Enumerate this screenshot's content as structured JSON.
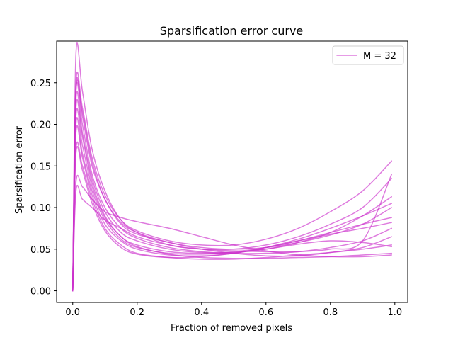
{
  "chart_data": {
    "type": "line",
    "title": "Sparsification error curve",
    "xlabel": "Fraction of removed pixels",
    "ylabel": "Sparsification error",
    "xlim": [
      -0.05,
      1.04
    ],
    "ylim": [
      -0.014,
      0.3
    ],
    "xticks": [
      0.0,
      0.2,
      0.4,
      0.6,
      0.8,
      1.0
    ],
    "xtick_labels": [
      "0.0",
      "0.2",
      "0.4",
      "0.6",
      "0.8",
      "1.0"
    ],
    "yticks": [
      0.0,
      0.05,
      0.1,
      0.15,
      0.2,
      0.25
    ],
    "ytick_labels": [
      "0.00",
      "0.05",
      "0.10",
      "0.15",
      "0.20",
      "0.25"
    ],
    "grid": false,
    "legend": {
      "position": "top-right",
      "entries": [
        "M = 32"
      ]
    },
    "line_color": "#cc33cc",
    "line_alpha": 0.65,
    "series": [
      {
        "name": "M = 32",
        "x": [
          0,
          0.01,
          0.03,
          0.06,
          0.1,
          0.15,
          0.2,
          0.3,
          0.4,
          0.5,
          0.6,
          0.7,
          0.8,
          0.9,
          0.99
        ],
        "values": [
          0,
          0.285,
          0.24,
          0.17,
          0.12,
          0.085,
          0.07,
          0.055,
          0.05,
          0.048,
          0.047,
          0.047,
          0.05,
          0.06,
          0.14
        ]
      },
      {
        "x": [
          0,
          0.01,
          0.03,
          0.06,
          0.1,
          0.15,
          0.2,
          0.3,
          0.4,
          0.5,
          0.6,
          0.7,
          0.8,
          0.9,
          0.99
        ],
        "values": [
          0,
          0.25,
          0.22,
          0.16,
          0.115,
          0.085,
          0.072,
          0.06,
          0.055,
          0.055,
          0.062,
          0.075,
          0.095,
          0.12,
          0.156
        ]
      },
      {
        "x": [
          0,
          0.01,
          0.03,
          0.06,
          0.1,
          0.15,
          0.2,
          0.3,
          0.4,
          0.5,
          0.6,
          0.7,
          0.8,
          0.9,
          0.99
        ],
        "values": [
          0,
          0.245,
          0.21,
          0.15,
          0.11,
          0.08,
          0.068,
          0.058,
          0.05,
          0.045,
          0.042,
          0.042,
          0.046,
          0.052,
          0.065
        ]
      },
      {
        "x": [
          0,
          0.01,
          0.03,
          0.06,
          0.1,
          0.15,
          0.2,
          0.3,
          0.4,
          0.5,
          0.6,
          0.7,
          0.8,
          0.9,
          0.99
        ],
        "values": [
          0,
          0.24,
          0.2,
          0.14,
          0.1,
          0.075,
          0.063,
          0.052,
          0.047,
          0.045,
          0.045,
          0.047,
          0.052,
          0.06,
          0.075
        ]
      },
      {
        "x": [
          0,
          0.01,
          0.03,
          0.06,
          0.1,
          0.15,
          0.2,
          0.3,
          0.4,
          0.5,
          0.6,
          0.7,
          0.8,
          0.9,
          0.99
        ],
        "values": [
          0,
          0.23,
          0.19,
          0.135,
          0.095,
          0.07,
          0.06,
          0.05,
          0.046,
          0.046,
          0.05,
          0.058,
          0.07,
          0.09,
          0.113
        ]
      },
      {
        "x": [
          0,
          0.01,
          0.03,
          0.06,
          0.1,
          0.15,
          0.2,
          0.3,
          0.4,
          0.5,
          0.6,
          0.7,
          0.8,
          0.9,
          0.99
        ],
        "values": [
          0,
          0.22,
          0.185,
          0.13,
          0.09,
          0.065,
          0.055,
          0.047,
          0.045,
          0.047,
          0.052,
          0.06,
          0.07,
          0.08,
          0.088
        ]
      },
      {
        "x": [
          0,
          0.01,
          0.03,
          0.06,
          0.1,
          0.15,
          0.2,
          0.3,
          0.4,
          0.5,
          0.6,
          0.7,
          0.8,
          0.9,
          0.99
        ],
        "values": [
          0,
          0.21,
          0.175,
          0.125,
          0.088,
          0.065,
          0.053,
          0.044,
          0.04,
          0.039,
          0.039,
          0.04,
          0.041,
          0.043,
          0.045
        ]
      },
      {
        "x": [
          0,
          0.01,
          0.03,
          0.06,
          0.1,
          0.15,
          0.2,
          0.3,
          0.4,
          0.5,
          0.6,
          0.7,
          0.8,
          0.9,
          0.99
        ],
        "values": [
          0,
          0.2,
          0.165,
          0.12,
          0.085,
          0.062,
          0.052,
          0.045,
          0.044,
          0.046,
          0.05,
          0.056,
          0.06,
          0.058,
          0.053
        ]
      },
      {
        "x": [
          0,
          0.01,
          0.03,
          0.06,
          0.1,
          0.15,
          0.2,
          0.3,
          0.4,
          0.5,
          0.6,
          0.7,
          0.8,
          0.9,
          0.99
        ],
        "values": [
          0,
          0.19,
          0.16,
          0.115,
          0.08,
          0.06,
          0.05,
          0.043,
          0.042,
          0.045,
          0.052,
          0.062,
          0.075,
          0.09,
          0.105
        ]
      },
      {
        "x": [
          0,
          0.01,
          0.03,
          0.06,
          0.1,
          0.15,
          0.2,
          0.3,
          0.4,
          0.5,
          0.6,
          0.7,
          0.8,
          0.9,
          0.99
        ],
        "values": [
          0,
          0.17,
          0.15,
          0.11,
          0.075,
          0.055,
          0.045,
          0.04,
          0.038,
          0.038,
          0.04,
          0.043,
          0.046,
          0.05,
          0.055
        ]
      },
      {
        "x": [
          0,
          0.01,
          0.03,
          0.06,
          0.1,
          0.15,
          0.2,
          0.3,
          0.4,
          0.5,
          0.6,
          0.7,
          0.8,
          0.9,
          0.99
        ],
        "values": [
          0,
          0.165,
          0.145,
          0.105,
          0.072,
          0.052,
          0.044,
          0.04,
          0.041,
          0.045,
          0.052,
          0.06,
          0.068,
          0.075,
          0.082
        ]
      },
      {
        "x": [
          0,
          0.01,
          0.03,
          0.06,
          0.1,
          0.15,
          0.2,
          0.3,
          0.4,
          0.5,
          0.6,
          0.7,
          0.8,
          0.9,
          0.99
        ],
        "values": [
          0,
          0.13,
          0.125,
          0.11,
          0.095,
          0.088,
          0.083,
          0.075,
          0.065,
          0.055,
          0.048,
          0.043,
          0.041,
          0.041,
          0.043
        ]
      },
      {
        "x": [
          0,
          0.01,
          0.03,
          0.06,
          0.1,
          0.15,
          0.2,
          0.3,
          0.4,
          0.5,
          0.6,
          0.7,
          0.8,
          0.9,
          0.99
        ],
        "values": [
          0,
          0.12,
          0.11,
          0.1,
          0.085,
          0.075,
          0.065,
          0.055,
          0.05,
          0.05,
          0.055,
          0.065,
          0.08,
          0.1,
          0.135
        ]
      },
      {
        "x": [
          0,
          0.01,
          0.03,
          0.06,
          0.1,
          0.15,
          0.2,
          0.3,
          0.4,
          0.5,
          0.6,
          0.7,
          0.8,
          0.9,
          0.99
        ],
        "values": [
          0,
          0.24,
          0.215,
          0.155,
          0.11,
          0.082,
          0.07,
          0.058,
          0.052,
          0.05,
          0.052,
          0.058,
          0.067,
          0.08,
          0.1
        ]
      }
    ]
  }
}
